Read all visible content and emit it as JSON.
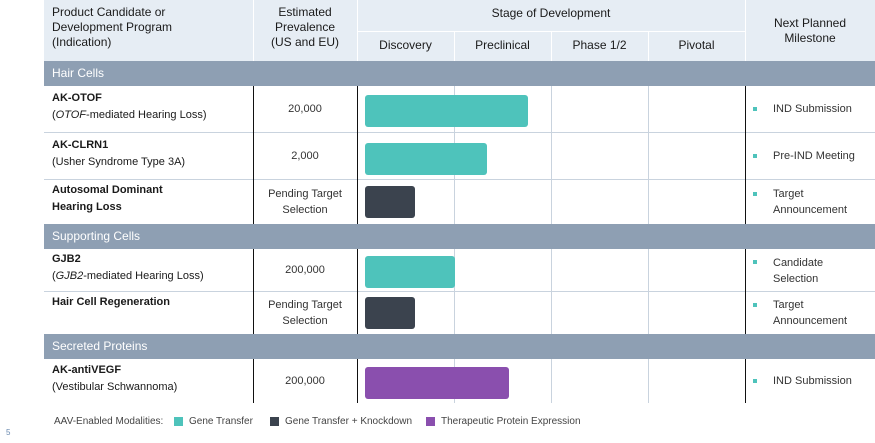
{
  "header": {
    "product_col": [
      "Product Candidate or",
      "Development Program",
      "(Indication)"
    ],
    "prevalence_col": [
      "Estimated",
      "Prevalence",
      "(US and EU)"
    ],
    "stage_title": "Stage of Development",
    "stages": [
      "Discovery",
      "Preclinical",
      "Phase 1/2",
      "Pivotal"
    ],
    "milestone_col": [
      "Next Planned",
      "Milestone"
    ]
  },
  "sections": [
    {
      "title": "Hair Cells"
    },
    {
      "title": "Supporting Cells"
    },
    {
      "title": "Secreted Proteins"
    }
  ],
  "rows": [
    {
      "name": "AK-OTOF",
      "sub_italic": "OTOF",
      "sub_rest": "-mediated Hearing Loss)",
      "sub_prefix": "(",
      "prevalence": [
        "20,000"
      ],
      "milestone": [
        "IND Submission"
      ],
      "modality": "Gene Transfer",
      "progress_stages": 1.75
    },
    {
      "name": "AK-CLRN1",
      "sub_plain": "(Usher Syndrome Type 3A)",
      "prevalence": [
        "2,000"
      ],
      "milestone": [
        "Pre-IND Meeting"
      ],
      "modality": "Gene Transfer",
      "progress_stages": 1.33
    },
    {
      "name_lines": [
        "Autosomal Dominant",
        "Hearing Loss"
      ],
      "prevalence": [
        "Pending Target",
        "Selection"
      ],
      "milestone": [
        "Target",
        "Announcement"
      ],
      "modality": "Gene Transfer + Knockdown",
      "progress_stages": 0.55
    },
    {
      "name": "GJB2",
      "sub_italic": "GJB2",
      "sub_rest": "-mediated Hearing Loss)",
      "sub_prefix": "(",
      "prevalence": [
        "200,000"
      ],
      "milestone": [
        "Candidate",
        "Selection"
      ],
      "modality": "Gene Transfer",
      "progress_stages": 1.0
    },
    {
      "name": "Hair Cell Regeneration",
      "prevalence": [
        "Pending Target",
        "Selection"
      ],
      "milestone": [
        "Target",
        "Announcement"
      ],
      "modality": "Gene Transfer + Knockdown",
      "progress_stages": 0.55
    },
    {
      "name": "AK-antiVEGF",
      "sub_plain": "(Vestibular Schwannoma)",
      "prevalence": [
        "200,000"
      ],
      "milestone": [
        "IND Submission"
      ],
      "modality": "Therapeutic Protein Expression",
      "progress_stages": 1.55
    }
  ],
  "legend": {
    "label": "AAV-Enabled Modalities:",
    "items": [
      {
        "label": "Gene Transfer",
        "color": "#4ec3bb"
      },
      {
        "label": "Gene Transfer + Knockdown",
        "color": "#3b434e"
      },
      {
        "label": "Therapeutic Protein Expression",
        "color": "#8a4fae"
      }
    ]
  },
  "colors": {
    "gene_transfer": "#4ec3bb",
    "gene_transfer_knockdown": "#3b434e",
    "protein_expression": "#8a4fae",
    "section_bar": "#8e9fb3",
    "header_band": "#e6edf4"
  },
  "page_number": "5"
}
